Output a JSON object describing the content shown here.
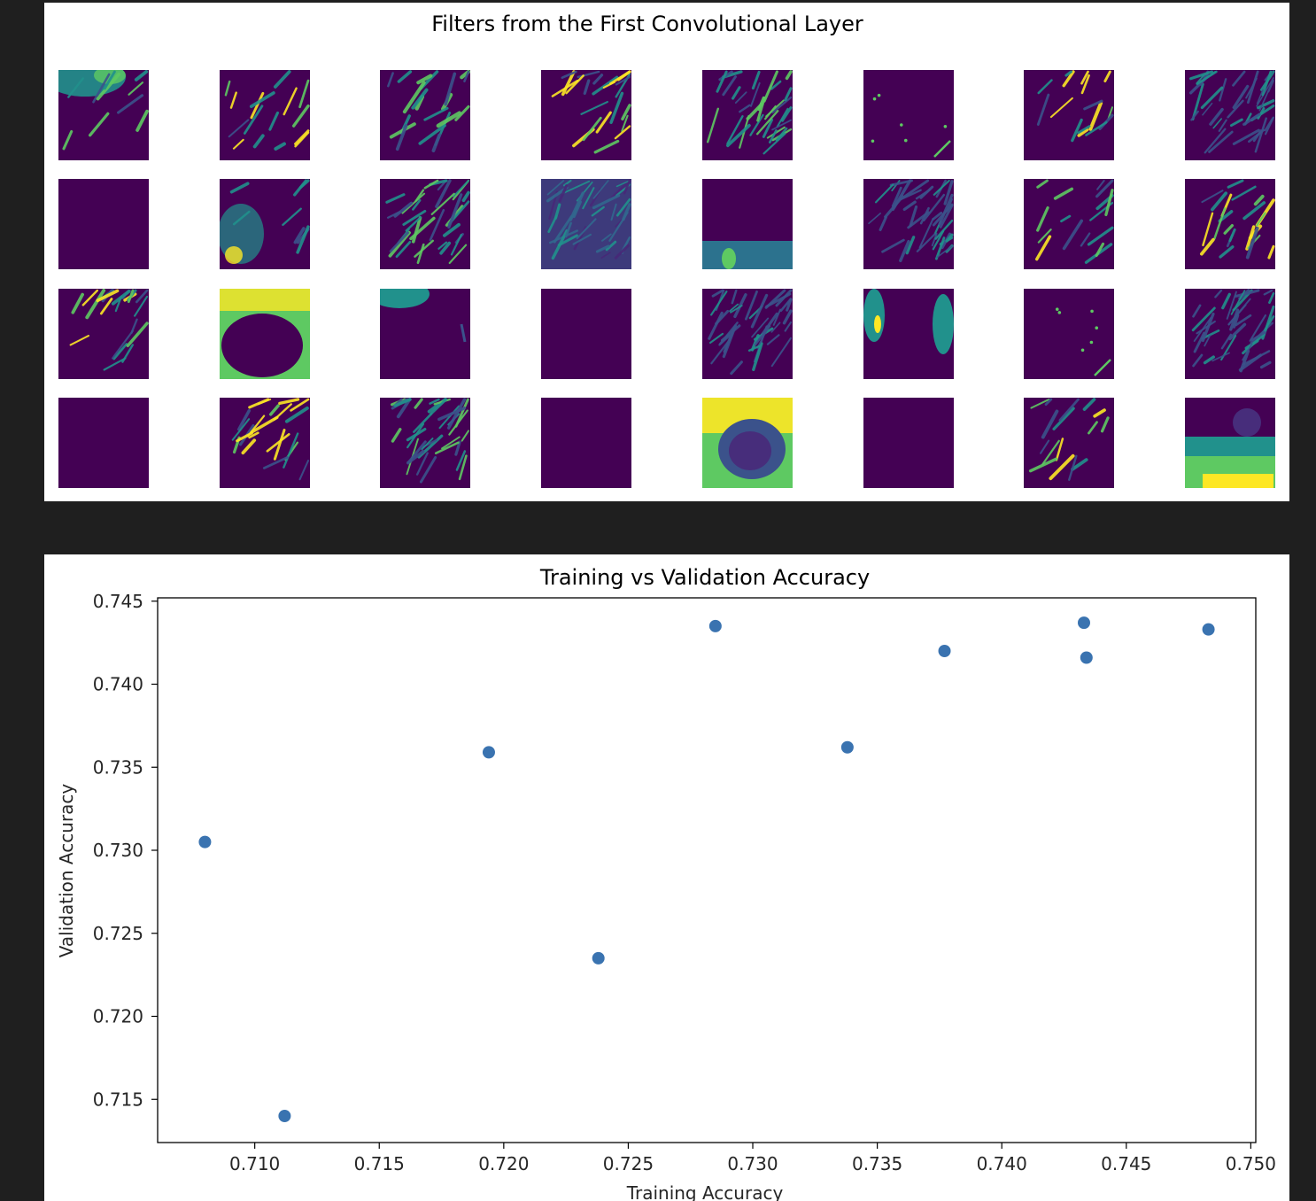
{
  "filters_figure": {
    "title": "Filters from the First Convolutional Layer",
    "rows": 4,
    "cols": 8,
    "colormap": "viridis",
    "tiles": [
      {
        "pattern": "top-left-bright-blob"
      },
      {
        "pattern": "sparse-strokes"
      },
      {
        "pattern": "diagonal-strokes"
      },
      {
        "pattern": "vertical-strokes"
      },
      {
        "pattern": "dense-strokes"
      },
      {
        "pattern": "sparse-dots"
      },
      {
        "pattern": "sparse-strokes"
      },
      {
        "pattern": "dense-edges"
      },
      {
        "pattern": "blank"
      },
      {
        "pattern": "bottom-left-blob"
      },
      {
        "pattern": "dense-strokes"
      },
      {
        "pattern": "textured-mid"
      },
      {
        "pattern": "bottom-band"
      },
      {
        "pattern": "dense-edges"
      },
      {
        "pattern": "sparse-strokes"
      },
      {
        "pattern": "vertical-strokes"
      },
      {
        "pattern": "vertical-strokes"
      },
      {
        "pattern": "bright-frame"
      },
      {
        "pattern": "top-left-band"
      },
      {
        "pattern": "blank"
      },
      {
        "pattern": "dense-edges"
      },
      {
        "pattern": "side-blobs"
      },
      {
        "pattern": "sparse-dots"
      },
      {
        "pattern": "dense-edges"
      },
      {
        "pattern": "blank"
      },
      {
        "pattern": "vertical-strokes"
      },
      {
        "pattern": "dense-strokes"
      },
      {
        "pattern": "blank"
      },
      {
        "pattern": "bright-ring"
      },
      {
        "pattern": "blank"
      },
      {
        "pattern": "sparse-strokes"
      },
      {
        "pattern": "bottom-bright-fade"
      }
    ]
  },
  "chart_data": {
    "type": "scatter",
    "title": "Training vs Validation Accuracy",
    "xlabel": "Training Accuracy",
    "ylabel": "Validation Accuracy",
    "xlim": [
      0.7061,
      0.7502
    ],
    "ylim": [
      0.7124,
      0.7452
    ],
    "xticks": [
      "0.710",
      "0.715",
      "0.720",
      "0.725",
      "0.730",
      "0.735",
      "0.740",
      "0.745",
      "0.750"
    ],
    "yticks": [
      "0.715",
      "0.720",
      "0.725",
      "0.730",
      "0.735",
      "0.740",
      "0.745"
    ],
    "grid": false,
    "marker_color": "#3a73b0",
    "points": [
      {
        "x": 0.708,
        "y": 0.7305
      },
      {
        "x": 0.7112,
        "y": 0.714
      },
      {
        "x": 0.7194,
        "y": 0.7359
      },
      {
        "x": 0.7238,
        "y": 0.7235
      },
      {
        "x": 0.7285,
        "y": 0.7435
      },
      {
        "x": 0.7338,
        "y": 0.7362
      },
      {
        "x": 0.7377,
        "y": 0.742
      },
      {
        "x": 0.7433,
        "y": 0.7437
      },
      {
        "x": 0.7434,
        "y": 0.7416
      },
      {
        "x": 0.7483,
        "y": 0.7433
      }
    ]
  }
}
